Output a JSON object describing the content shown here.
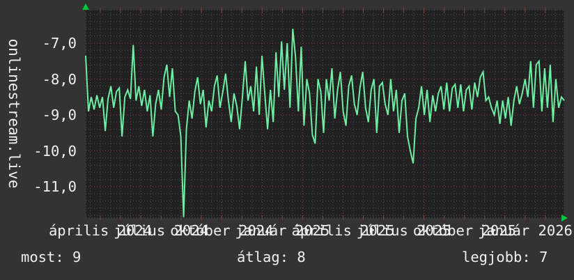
{
  "branding": {
    "site": "onlinestream.live"
  },
  "stats": {
    "most": "most: 9",
    "atlag": "átlag: 8",
    "legjobb": "legjobb: 7"
  },
  "colors": {
    "bg": "#333333",
    "plot_bg": "#212121",
    "text": "#f0f0f0",
    "line": "#6feda3",
    "arrow": "#00c83c",
    "grid_minor": "#525252",
    "grid_major": "#8a4040"
  },
  "chart_data": {
    "type": "line",
    "title": "",
    "xlabel": "",
    "ylabel": "onlinestream.live",
    "ylim": [
      -11.87,
      -6.07
    ],
    "grid": "on",
    "legend": "none",
    "y_tick_labels": [
      "-7,0",
      "-8,0",
      "-9,0",
      "-10,0",
      "-11,0"
    ],
    "y_tick_values": [
      -7,
      -8,
      -9,
      -10,
      -11
    ],
    "x_tick_labels": [
      "április 2024",
      "július 2024",
      "október 2024",
      "január 2025",
      "április 2025",
      "július 2025",
      "október 2025",
      "január 2026"
    ],
    "x_tick_pos": [
      0.0306,
      0.1573,
      0.2843,
      0.411,
      0.5379,
      0.6647,
      0.7917,
      0.9185
    ],
    "stats": {
      "most": 9,
      "atlag": 8,
      "legjobb": 7
    },
    "values": [
      -7.35,
      -8.9,
      -8.5,
      -8.85,
      -8.45,
      -8.8,
      -8.5,
      -9.45,
      -8.55,
      -8.2,
      -8.8,
      -8.35,
      -8.25,
      -9.6,
      -8.5,
      -8.3,
      -8.55,
      -7.05,
      -8.6,
      -8.2,
      -8.75,
      -8.3,
      -8.9,
      -8.45,
      -9.6,
      -8.7,
      -8.3,
      -8.85,
      -7.95,
      -7.6,
      -8.5,
      -7.7,
      -8.9,
      -9.0,
      -9.6,
      -11.85,
      -9.4,
      -8.6,
      -9.1,
      -8.35,
      -7.95,
      -8.7,
      -8.3,
      -9.35,
      -8.6,
      -8.9,
      -8.2,
      -7.9,
      -8.8,
      -8.35,
      -7.85,
      -8.6,
      -9.2,
      -8.4,
      -8.75,
      -9.4,
      -8.5,
      -7.5,
      -8.6,
      -8.2,
      -8.9,
      -7.65,
      -9.0,
      -7.35,
      -8.4,
      -9.4,
      -8.3,
      -9.2,
      -7.25,
      -8.5,
      -6.95,
      -8.3,
      -7.0,
      -8.8,
      -6.6,
      -7.4,
      -8.9,
      -7.1,
      -9.3,
      -8.0,
      -8.4,
      -9.55,
      -9.8,
      -8.0,
      -8.35,
      -9.5,
      -8.0,
      -8.6,
      -7.7,
      -9.1,
      -8.3,
      -7.8,
      -8.9,
      -9.3,
      -8.2,
      -7.9,
      -8.7,
      -9.0,
      -8.25,
      -7.8,
      -8.8,
      -9.2,
      -8.3,
      -8.0,
      -9.5,
      -8.2,
      -8.1,
      -8.7,
      -9.0,
      -8.0,
      -8.9,
      -8.3,
      -9.5,
      -8.6,
      -8.4,
      -9.6,
      -10.0,
      -10.35,
      -9.1,
      -8.8,
      -8.2,
      -9.0,
      -8.3,
      -9.2,
      -8.45,
      -8.9,
      -8.4,
      -8.2,
      -8.85,
      -8.1,
      -8.9,
      -8.25,
      -8.15,
      -8.8,
      -8.15,
      -8.9,
      -8.3,
      -8.2,
      -8.85,
      -8.1,
      -8.5,
      -7.95,
      -7.8,
      -8.6,
      -8.5,
      -8.8,
      -9.0,
      -8.6,
      -9.25,
      -8.6,
      -9.1,
      -8.5,
      -9.3,
      -8.6,
      -8.2,
      -8.7,
      -8.4,
      -8.0,
      -8.5,
      -7.5,
      -8.8,
      -7.6,
      -7.5,
      -8.9,
      -7.7,
      -8.8,
      -7.6,
      -9.2,
      -8.0,
      -8.8,
      -8.5,
      -8.6
    ]
  }
}
